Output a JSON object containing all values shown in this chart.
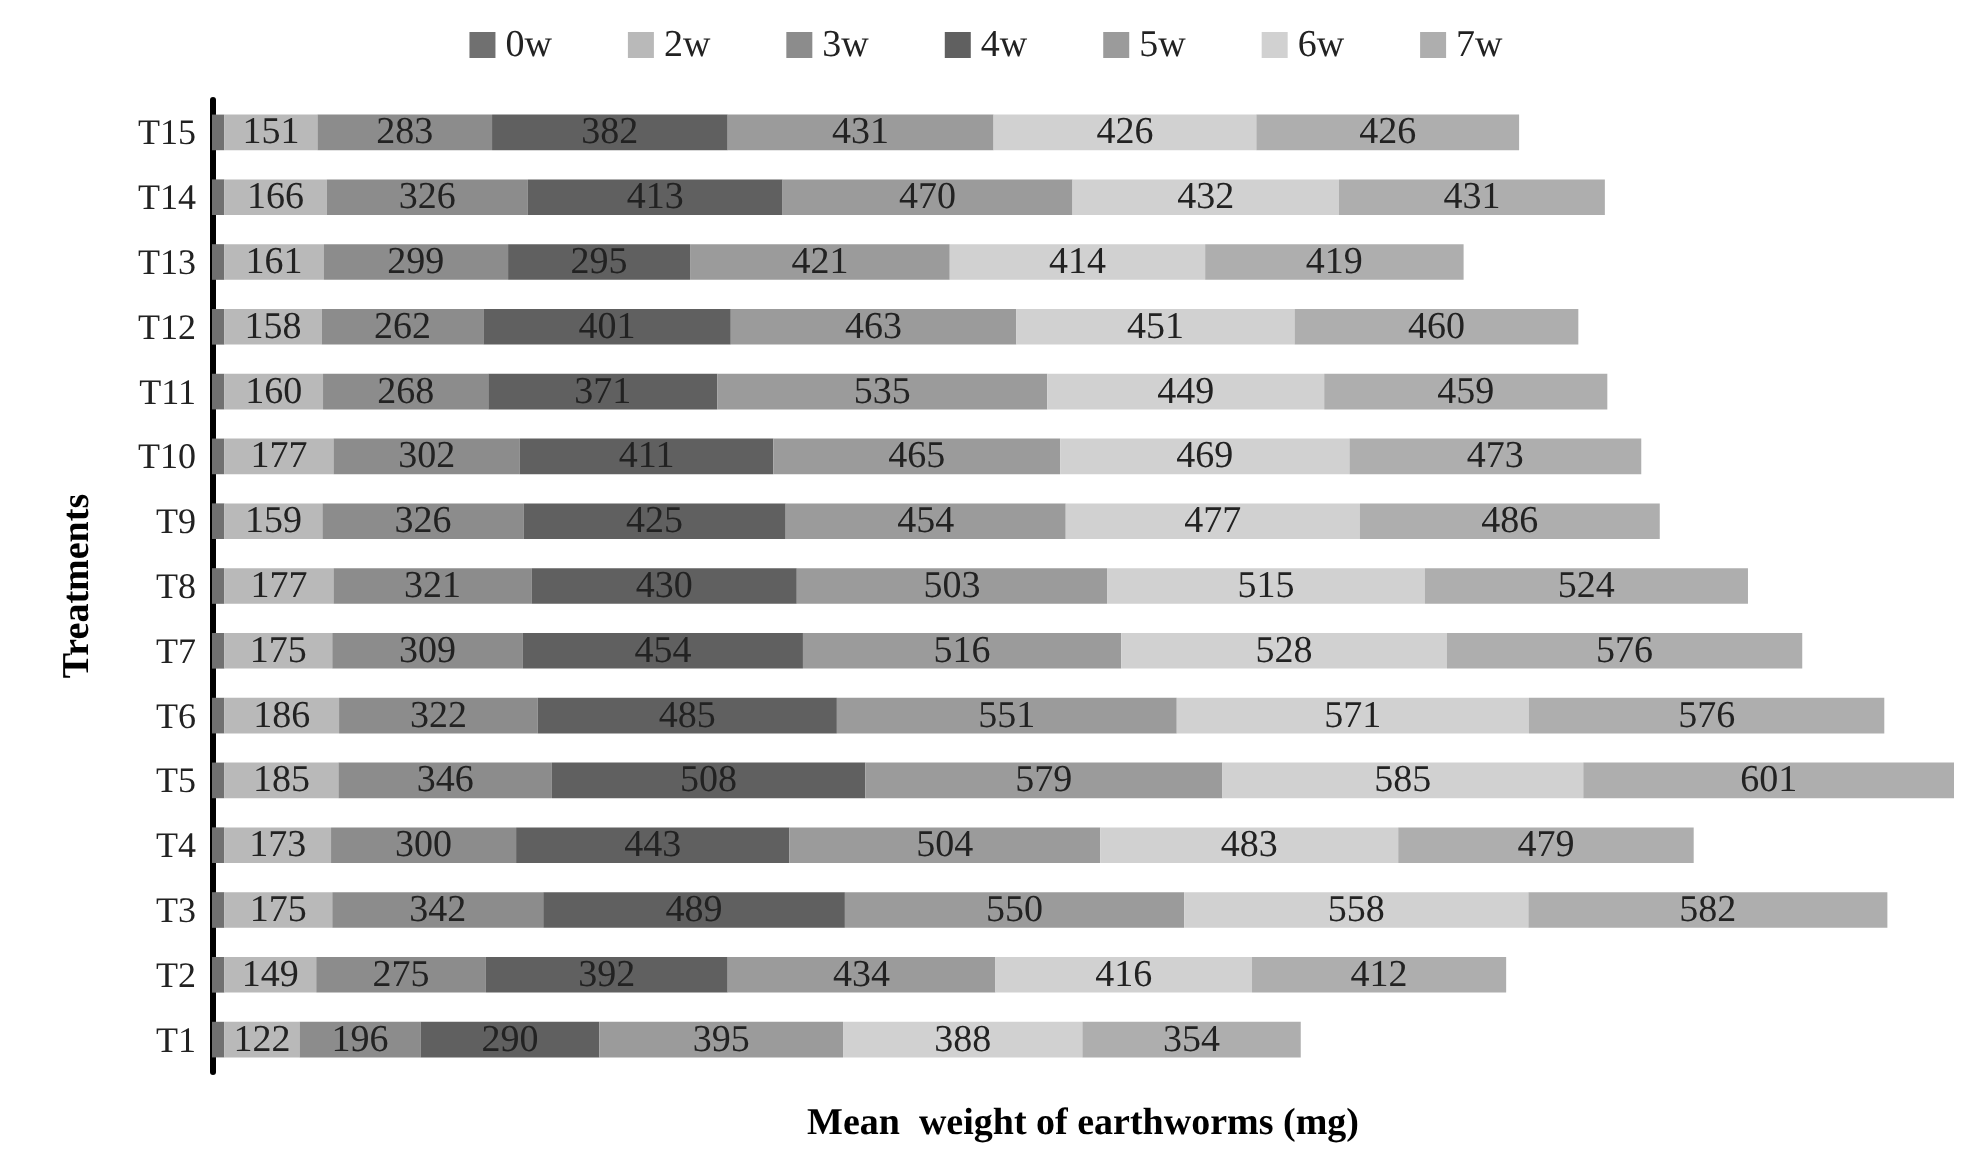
{
  "chart_data": {
    "type": "bar",
    "orientation": "horizontal",
    "stacked": true,
    "xlabel": "Mean  weight of earthworms (mg)",
    "ylabel": "Treatments",
    "legend": "top",
    "grid": false,
    "categories": [
      "T15",
      "T14",
      "T13",
      "T12",
      "T11",
      "T10",
      "T9",
      "T8",
      "T7",
      "T6",
      "T5",
      "T4",
      "T3",
      "T2",
      "T1"
    ],
    "series": [
      {
        "name": "0w",
        "color": "#707070",
        "values": [
          20,
          20,
          20,
          20,
          20,
          20,
          20,
          20,
          20,
          20,
          20,
          20,
          20,
          20,
          20
        ],
        "value_labels": [
          null,
          null,
          null,
          null,
          null,
          null,
          null,
          null,
          null,
          null,
          null,
          null,
          null,
          null,
          null
        ]
      },
      {
        "name": "2w",
        "color": "#b9b9b9",
        "values": [
          151,
          166,
          161,
          158,
          160,
          177,
          159,
          177,
          175,
          186,
          185,
          173,
          175,
          149,
          122
        ],
        "value_labels": [
          "151",
          "166",
          "161",
          "158",
          "160",
          "177",
          "159",
          "177",
          "175",
          "186",
          "185",
          "173",
          "175",
          "149",
          "122"
        ]
      },
      {
        "name": "3w",
        "color": "#8c8c8c",
        "values": [
          283,
          326,
          299,
          262,
          268,
          302,
          326,
          321,
          309,
          322,
          346,
          300,
          342,
          275,
          196
        ],
        "value_labels": [
          "283",
          "326",
          "299",
          "262",
          "268",
          "302",
          "326",
          "321",
          "309",
          "322",
          "346",
          "300",
          "342",
          "275",
          "196"
        ]
      },
      {
        "name": "4w",
        "color": "#606060",
        "values": [
          382,
          413,
          295,
          401,
          371,
          411,
          425,
          430,
          454,
          485,
          508,
          443,
          489,
          392,
          290
        ],
        "value_labels": [
          "382",
          "413",
          "295",
          "401",
          "371",
          "411",
          "425",
          "430",
          "454",
          "485",
          "508",
          "443",
          "489",
          "392",
          "290"
        ]
      },
      {
        "name": "5w",
        "color": "#9b9b9b",
        "values": [
          431,
          470,
          421,
          463,
          535,
          465,
          454,
          503,
          516,
          551,
          579,
          504,
          550,
          434,
          395
        ],
        "value_labels": [
          "431",
          "470",
          "421",
          "463",
          "535",
          "465",
          "454",
          "503",
          "516",
          "551",
          "579",
          "504",
          "550",
          "434",
          "395"
        ]
      },
      {
        "name": "6w",
        "color": "#d1d1d1",
        "values": [
          426,
          432,
          414,
          451,
          449,
          469,
          477,
          515,
          528,
          571,
          585,
          483,
          558,
          416,
          388
        ],
        "value_labels": [
          "426",
          "432",
          "414",
          "451",
          "449",
          "469",
          "477",
          "515",
          "528",
          "571",
          "585",
          "483",
          "558",
          "416",
          "388"
        ]
      },
      {
        "name": "7w",
        "color": "#aeaeae",
        "values": [
          426,
          431,
          419,
          460,
          459,
          473,
          486,
          524,
          576,
          576,
          601,
          479,
          582,
          412,
          354
        ],
        "value_labels": [
          "426",
          "431",
          "419",
          "460",
          "459",
          "473",
          "486",
          "524",
          "576",
          "576",
          "601",
          "479",
          "582",
          "412",
          "354"
        ]
      }
    ]
  }
}
